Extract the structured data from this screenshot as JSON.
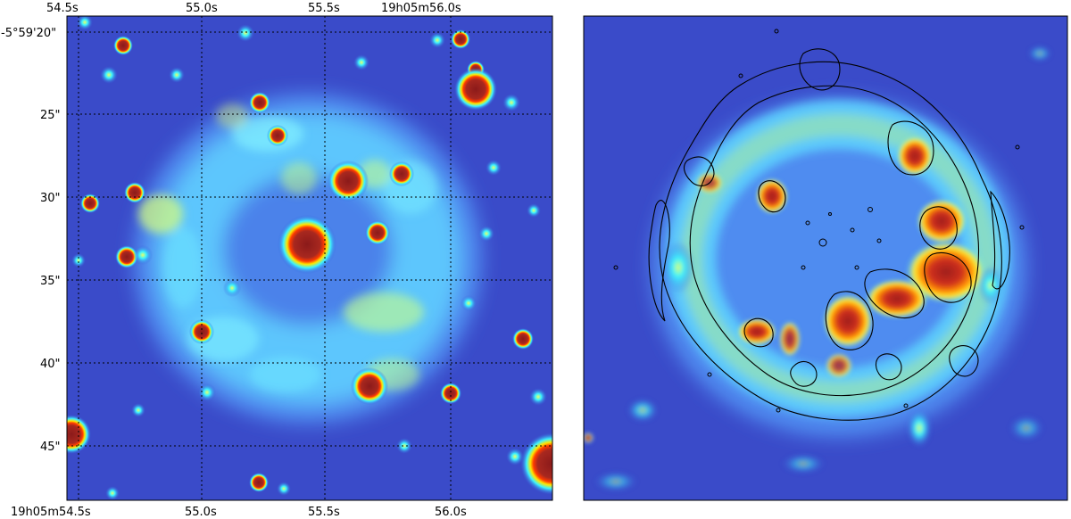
{
  "figure": {
    "left_panel": {
      "ra_top_ticks": [
        "54.5s",
        "55.0s",
        "55.5s",
        "19h05m56.0s"
      ],
      "ra_bottom_ticks": [
        "19h05m54.5s",
        "55.0s",
        "55.5s",
        "56.0s"
      ],
      "dec_ticks": [
        "-5°59'20\"",
        "25\"",
        "30\"",
        "35\"",
        "40\"",
        "45\""
      ],
      "grid": "on (dotted)",
      "colormap": "jet"
    },
    "right_panel": {
      "overlay": "black contours",
      "colormap": "jet"
    }
  }
}
